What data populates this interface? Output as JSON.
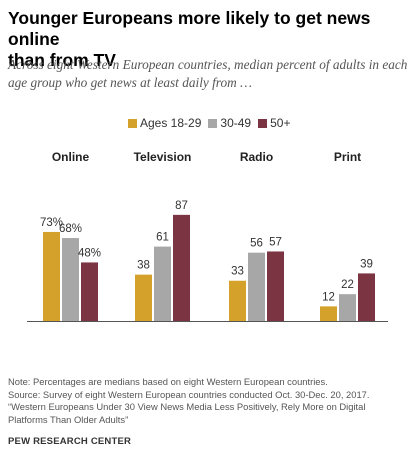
{
  "title_lines": [
    "Younger Europeans more likely to get news online",
    "than from TV"
  ],
  "subtitle_lines": [
    "Across eight Western European countries, median percent of adults in each",
    "age group who get news at least daily from …"
  ],
  "chart_data": {
    "type": "bar",
    "categories": [
      "Online",
      "Television",
      "Radio",
      "Print"
    ],
    "series": [
      {
        "name": "Ages 18-29",
        "values": [
          73,
          38,
          33,
          12
        ],
        "color": "#d4a22b"
      },
      {
        "name": "30-49",
        "values": [
          68,
          61,
          56,
          22
        ],
        "color": "#a7a7a7"
      },
      {
        "name": "50+",
        "values": [
          48,
          87,
          57,
          39
        ],
        "color": "#7b3441"
      }
    ],
    "value_labels": [
      [
        "73%",
        "68%",
        "48%"
      ],
      [
        "38",
        "61",
        "87"
      ],
      [
        "33",
        "56",
        "57"
      ],
      [
        "12",
        "22",
        "39"
      ]
    ],
    "ylim": [
      0,
      100
    ],
    "grid": false,
    "legend_position": "top"
  },
  "notes": [
    "Note: Percentages are medians based on eight Western European countries.",
    "Source: Survey of eight Western European countries conducted Oct. 30-Dec. 20, 2017.",
    "“Western Europeans Under 30 View News Media Less Positively, Rely More on Digital",
    "Platforms Than Older Adults”"
  ],
  "footer": "PEW RESEARCH CENTER"
}
